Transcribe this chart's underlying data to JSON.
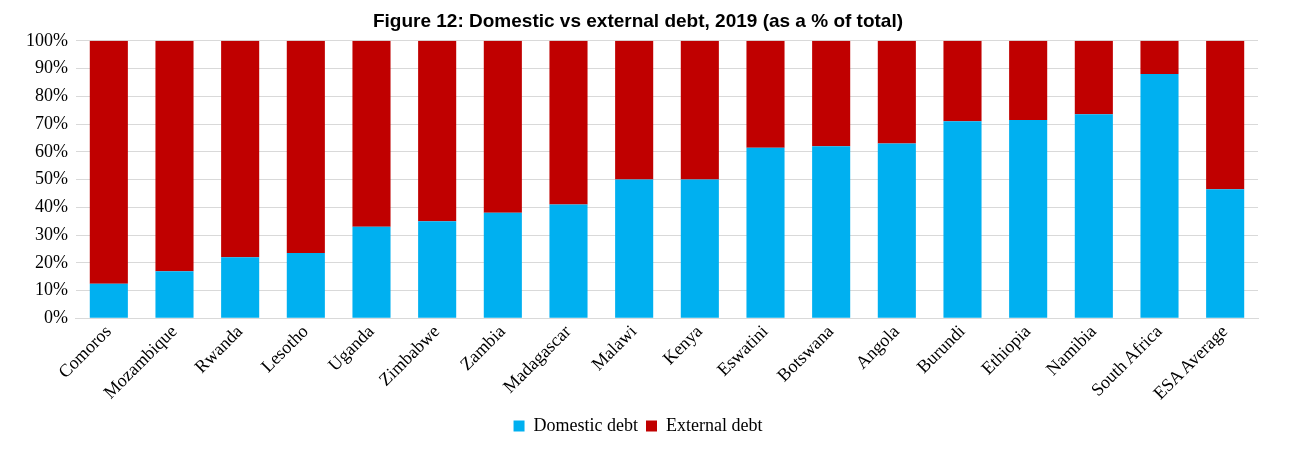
{
  "chart_data": {
    "type": "bar",
    "title": "Figure 12: Domestic vs external debt, 2019 (as a % of total)",
    "categories": [
      "Comoros",
      "Mozambique",
      "Rwanda",
      "Lesotho",
      "Uganda",
      "Zimbabwe",
      "Zambia",
      "Madagascar",
      "Malawi",
      "Kenya",
      "Eswatini",
      "Botswana",
      "Angola",
      "Burundi",
      "Ethiopia",
      "Namibia",
      "South Africa",
      "ESA Average"
    ],
    "series": [
      {
        "name": "Domestic debt",
        "color": "#00b0f0",
        "values": [
          12.5,
          17,
          22,
          23.5,
          33,
          35,
          38,
          41,
          50,
          50,
          61.5,
          62,
          63,
          71,
          71.5,
          73.5,
          88,
          46.5
        ]
      },
      {
        "name": "External debt",
        "color": "#c00000",
        "values": [
          87.5,
          83,
          78,
          76.5,
          67,
          65,
          62,
          59,
          50,
          50,
          38.5,
          38,
          37,
          29,
          28.5,
          26.5,
          12,
          53.5
        ]
      }
    ],
    "stacked": true,
    "ylim": [
      0,
      100
    ],
    "yticks": [
      {
        "value": 0,
        "label": "0%"
      },
      {
        "value": 10,
        "label": "10%"
      },
      {
        "value": 20,
        "label": "20%"
      },
      {
        "value": 30,
        "label": "30%"
      },
      {
        "value": 40,
        "label": "40%"
      },
      {
        "value": 50,
        "label": "50%"
      },
      {
        "value": 60,
        "label": "60%"
      },
      {
        "value": 70,
        "label": "70%"
      },
      {
        "value": 80,
        "label": "80%"
      },
      {
        "value": 90,
        "label": "90%"
      },
      {
        "value": 100,
        "label": "100%"
      }
    ],
    "grid": "y",
    "legend": "bottom"
  }
}
